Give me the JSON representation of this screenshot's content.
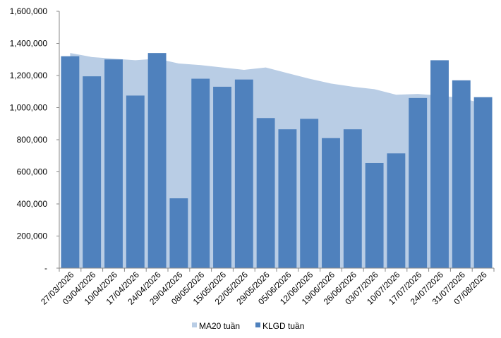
{
  "chart_data": {
    "type": "bar",
    "categories": [
      "27/03/2026",
      "03/04/2026",
      "10/04/2026",
      "17/04/2026",
      "24/04/2026",
      "29/04/2026",
      "08/05/2026",
      "15/05/2026",
      "22/05/2026",
      "29/05/2026",
      "05/06/2026",
      "12/06/2026",
      "19/06/2026",
      "26/06/2026",
      "03/07/2026",
      "10/07/2026",
      "17/07/2026",
      "24/07/2026",
      "31/07/2026",
      "07/08/2026"
    ],
    "series": [
      {
        "name": "KLGD tuần",
        "type": "bar",
        "color": "#4F81BD",
        "values": [
          1320000,
          1195000,
          1300000,
          1075000,
          1340000,
          435000,
          1180000,
          1130000,
          1175000,
          935000,
          865000,
          930000,
          810000,
          865000,
          655000,
          715000,
          1060000,
          1295000,
          1170000,
          1065000
        ]
      },
      {
        "name": "MA20 tuần",
        "type": "area",
        "color": "#B9CDE5",
        "values": [
          1340000,
          1315000,
          1305000,
          1295000,
          1305000,
          1275000,
          1265000,
          1250000,
          1235000,
          1250000,
          1215000,
          1180000,
          1150000,
          1130000,
          1115000,
          1080000,
          1085000,
          1075000,
          1060000,
          1025000
        ]
      }
    ],
    "y_ticks": [
      "-",
      "200,000",
      "400,000",
      "600,000",
      "800,000",
      "1,000,000",
      "1,200,000",
      "1,400,000",
      "1,600,000"
    ],
    "ylim": [
      0,
      1600000
    ],
    "legend_position": "bottom",
    "grid": false
  }
}
